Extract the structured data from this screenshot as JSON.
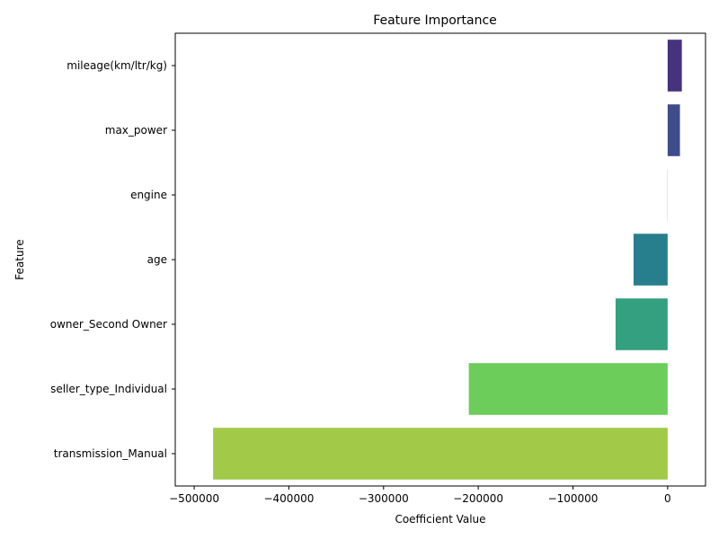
{
  "chart_data": {
    "type": "bar",
    "orientation": "horizontal",
    "title": "Feature Importance",
    "xlabel": "Coefficient Value",
    "ylabel": "Feature",
    "categories": [
      "mileage(km/ltr/kg)",
      "max_power",
      "engine",
      "age",
      "owner_Second Owner",
      "seller_type_Individual",
      "transmission_Manual"
    ],
    "values": [
      15000,
      13000,
      150,
      -36000,
      -55000,
      -210000,
      -480000
    ],
    "colors": [
      "#46327e",
      "#3e4c8a",
      "#31688e",
      "#277f8e",
      "#35a07f",
      "#6ccd5a",
      "#a2c948"
    ],
    "xlim": [
      -520000,
      40000
    ],
    "xticks": [
      -500000,
      -400000,
      -300000,
      -200000,
      -100000,
      0
    ],
    "xtick_labels": [
      "−500000",
      "−400000",
      "−300000",
      "−200000",
      "−100000",
      "0"
    ],
    "grid": false,
    "legend": "none"
  }
}
